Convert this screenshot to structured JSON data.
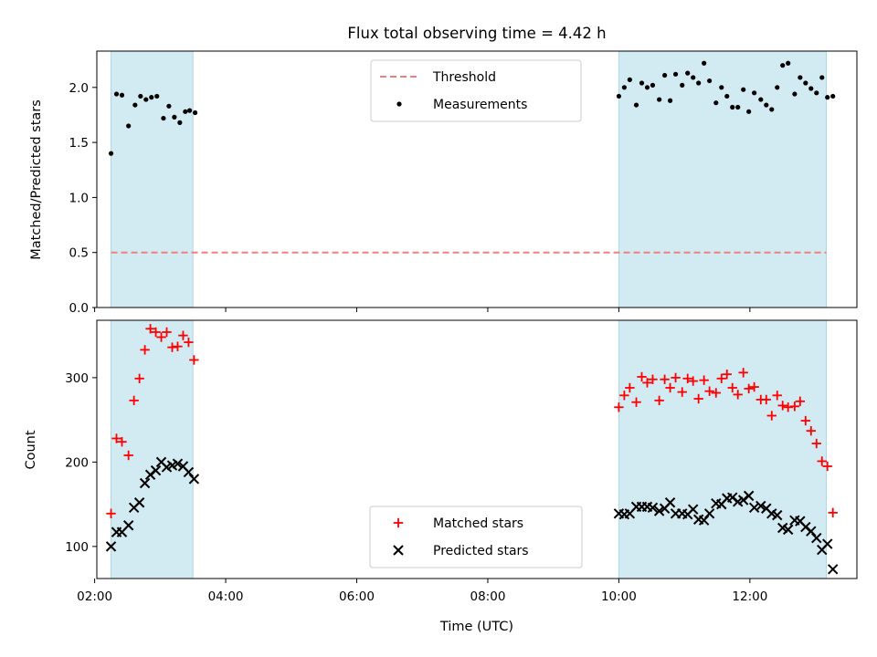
{
  "title": "Flux total observing time = 4.42 h",
  "colors": {
    "shade": "#add8e6",
    "threshold": "#f08080",
    "measurement": "#000000",
    "matched": "#ff0000",
    "predicted": "#000000"
  },
  "chart_data": [
    {
      "type": "scatter",
      "ylabel": "Matched/Predicted stars",
      "xlim": [
        "02:02",
        "13:38"
      ],
      "ylim": [
        0,
        2.33
      ],
      "yticks": [
        "0.0",
        "0.5",
        "1.0",
        "1.5",
        "2.0"
      ],
      "shaded_intervals": [
        [
          "02:15",
          "03:30"
        ],
        [
          "10:00",
          "13:10"
        ]
      ],
      "legend": {
        "placement": "upper center",
        "entries": [
          "Threshold",
          "Measurements"
        ]
      },
      "threshold": {
        "name": "Threshold",
        "value": 0.5,
        "x_range": [
          "02:15",
          "13:10"
        ],
        "style": "dashed"
      },
      "series": [
        {
          "name": "Measurements",
          "marker": "dot",
          "points": [
            [
              "02:15",
              1.4
            ],
            [
              "02:20",
              1.94
            ],
            [
              "02:25",
              1.93
            ],
            [
              "02:31",
              1.65
            ],
            [
              "02:37",
              1.84
            ],
            [
              "02:42",
              1.92
            ],
            [
              "02:47",
              1.89
            ],
            [
              "02:52",
              1.91
            ],
            [
              "02:57",
              1.92
            ],
            [
              "03:03",
              1.72
            ],
            [
              "03:08",
              1.83
            ],
            [
              "03:13",
              1.73
            ],
            [
              "03:18",
              1.68
            ],
            [
              "03:23",
              1.78
            ],
            [
              "03:27",
              1.79
            ],
            [
              "03:32",
              1.77
            ],
            [
              "10:00",
              1.92
            ],
            [
              "10:05",
              2.0
            ],
            [
              "10:10",
              2.07
            ],
            [
              "10:16",
              1.84
            ],
            [
              "10:21",
              2.04
            ],
            [
              "10:26",
              2.0
            ],
            [
              "10:31",
              2.02
            ],
            [
              "10:37",
              1.89
            ],
            [
              "10:42",
              2.11
            ],
            [
              "10:47",
              1.88
            ],
            [
              "10:52",
              2.12
            ],
            [
              "10:58",
              2.02
            ],
            [
              "11:03",
              2.13
            ],
            [
              "11:08",
              2.09
            ],
            [
              "11:13",
              2.04
            ],
            [
              "11:18",
              2.22
            ],
            [
              "11:23",
              2.06
            ],
            [
              "11:29",
              1.86
            ],
            [
              "11:34",
              2.0
            ],
            [
              "11:39",
              1.92
            ],
            [
              "11:44",
              1.82
            ],
            [
              "11:49",
              1.82
            ],
            [
              "11:54",
              1.98
            ],
            [
              "11:59",
              1.78
            ],
            [
              "12:04",
              1.95
            ],
            [
              "12:10",
              1.89
            ],
            [
              "12:15",
              1.84
            ],
            [
              "12:20",
              1.8
            ],
            [
              "12:25",
              2.0
            ],
            [
              "12:30",
              2.2
            ],
            [
              "12:35",
              2.22
            ],
            [
              "12:41",
              1.94
            ],
            [
              "12:46",
              2.09
            ],
            [
              "12:51",
              2.04
            ],
            [
              "12:56",
              1.99
            ],
            [
              "13:01",
              1.95
            ],
            [
              "13:06",
              2.09
            ],
            [
              "13:11",
              1.91
            ],
            [
              "13:16",
              1.92
            ]
          ]
        }
      ]
    },
    {
      "type": "scatter",
      "xlabel": "Time (UTC)",
      "ylabel": "Count",
      "xlim": [
        "02:02",
        "13:38"
      ],
      "ylim": [
        62,
        368
      ],
      "xticks": [
        "02:00",
        "04:00",
        "06:00",
        "08:00",
        "10:00",
        "12:00"
      ],
      "yticks": [
        "100",
        "200",
        "300"
      ],
      "shaded_intervals": [
        [
          "02:15",
          "03:30"
        ],
        [
          "10:00",
          "13:10"
        ]
      ],
      "legend": {
        "placement": "lower center",
        "entries": [
          "Matched stars",
          "Predicted stars"
        ]
      },
      "series": [
        {
          "name": "Matched stars",
          "marker": "plus",
          "points": [
            [
              "02:15",
              139
            ],
            [
              "02:20",
              228
            ],
            [
              "02:25",
              224
            ],
            [
              "02:31",
              208
            ],
            [
              "02:36",
              273
            ],
            [
              "02:41",
              299
            ],
            [
              "02:46",
              333
            ],
            [
              "02:51",
              358
            ],
            [
              "02:56",
              354
            ],
            [
              "03:01",
              348
            ],
            [
              "03:06",
              354
            ],
            [
              "03:11",
              336
            ],
            [
              "03:16",
              337
            ],
            [
              "03:21",
              350
            ],
            [
              "03:26",
              342
            ],
            [
              "03:31",
              321
            ],
            [
              "10:00",
              265
            ],
            [
              "10:05",
              279
            ],
            [
              "10:10",
              288
            ],
            [
              "10:16",
              271
            ],
            [
              "10:21",
              301
            ],
            [
              "10:26",
              294
            ],
            [
              "10:31",
              298
            ],
            [
              "10:37",
              273
            ],
            [
              "10:42",
              298
            ],
            [
              "10:47",
              288
            ],
            [
              "10:52",
              300
            ],
            [
              "10:58",
              283
            ],
            [
              "11:03",
              299
            ],
            [
              "11:08",
              296
            ],
            [
              "11:13",
              275
            ],
            [
              "11:18",
              297
            ],
            [
              "11:23",
              284
            ],
            [
              "11:29",
              282
            ],
            [
              "11:34",
              299
            ],
            [
              "11:39",
              304
            ],
            [
              "11:44",
              288
            ],
            [
              "11:49",
              280
            ],
            [
              "11:54",
              306
            ],
            [
              "11:59",
              287
            ],
            [
              "12:04",
              289
            ],
            [
              "12:10",
              274
            ],
            [
              "12:15",
              274
            ],
            [
              "12:20",
              255
            ],
            [
              "12:25",
              279
            ],
            [
              "12:30",
              267
            ],
            [
              "12:35",
              265
            ],
            [
              "12:41",
              266
            ],
            [
              "12:46",
              272
            ],
            [
              "12:51",
              249
            ],
            [
              "12:56",
              237
            ],
            [
              "13:01",
              222
            ],
            [
              "13:06",
              201
            ],
            [
              "13:11",
              195
            ],
            [
              "13:16",
              140
            ]
          ]
        },
        {
          "name": "Predicted stars",
          "marker": "x",
          "points": [
            [
              "02:15",
              100
            ],
            [
              "02:20",
              117
            ],
            [
              "02:25",
              117
            ],
            [
              "02:31",
              125
            ],
            [
              "02:36",
              146
            ],
            [
              "02:41",
              152
            ],
            [
              "02:46",
              175
            ],
            [
              "02:51",
              185
            ],
            [
              "02:56",
              190
            ],
            [
              "03:01",
              200
            ],
            [
              "03:06",
              194
            ],
            [
              "03:11",
              196
            ],
            [
              "03:16",
              198
            ],
            [
              "03:21",
              195
            ],
            [
              "03:26",
              188
            ],
            [
              "03:31",
              180
            ],
            [
              "10:00",
              139
            ],
            [
              "10:05",
              138
            ],
            [
              "10:10",
              139
            ],
            [
              "10:16",
              147
            ],
            [
              "10:21",
              147
            ],
            [
              "10:26",
              147
            ],
            [
              "10:31",
              146
            ],
            [
              "10:37",
              142
            ],
            [
              "10:42",
              145
            ],
            [
              "10:47",
              152
            ],
            [
              "10:52",
              139
            ],
            [
              "10:58",
              139
            ],
            [
              "11:03",
              138
            ],
            [
              "11:08",
              144
            ],
            [
              "11:13",
              132
            ],
            [
              "11:18",
              131
            ],
            [
              "11:23",
              139
            ],
            [
              "11:29",
              151
            ],
            [
              "11:34",
              150
            ],
            [
              "11:39",
              157
            ],
            [
              "11:44",
              158
            ],
            [
              "11:49",
              153
            ],
            [
              "11:54",
              155
            ],
            [
              "11:59",
              160
            ],
            [
              "12:04",
              146
            ],
            [
              "12:10",
              148
            ],
            [
              "12:15",
              145
            ],
            [
              "12:20",
              139
            ],
            [
              "12:25",
              137
            ],
            [
              "12:30",
              122
            ],
            [
              "12:35",
              120
            ],
            [
              "12:41",
              131
            ],
            [
              "12:46",
              130
            ],
            [
              "12:51",
              123
            ],
            [
              "12:56",
              118
            ],
            [
              "13:01",
              110
            ],
            [
              "13:06",
              96
            ],
            [
              "13:11",
              103
            ],
            [
              "13:16",
              73
            ]
          ]
        }
      ]
    }
  ]
}
